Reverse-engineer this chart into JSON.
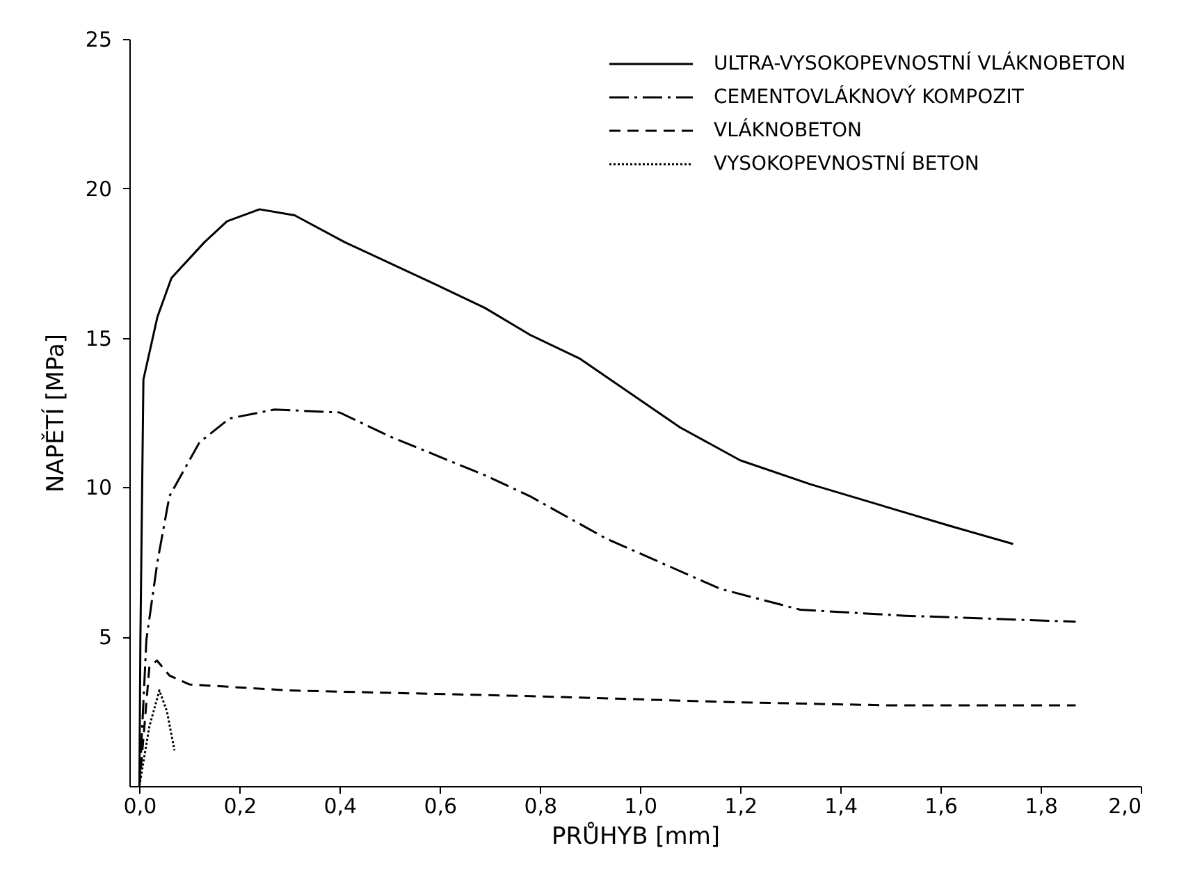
{
  "chart_data": {
    "type": "line",
    "xlabel": "PRŮHYB [mm]",
    "ylabel": "NAPĚTÍ [MPa]",
    "xlim": [
      -0.02,
      2.0
    ],
    "xticks": [
      {
        "value": 0,
        "label": "0,0"
      },
      {
        "value": 0.2,
        "label": "0,2"
      },
      {
        "value": 0.4,
        "label": "0,4"
      },
      {
        "value": 0.6,
        "label": "0,6"
      },
      {
        "value": 0.8,
        "label": "0,8"
      },
      {
        "value": 1.0,
        "label": "1,0"
      },
      {
        "value": 1.2,
        "label": "1,2"
      },
      {
        "value": 1.4,
        "label": "1,4"
      },
      {
        "value": 1.6,
        "label": "1,6"
      },
      {
        "value": 1.8,
        "label": "1,8"
      },
      {
        "value": 2.0,
        "label": "2,0"
      }
    ],
    "ylim": [
      0,
      25
    ],
    "yticks": [
      5,
      10,
      15,
      20,
      25
    ],
    "grid": false,
    "legend": "top right",
    "marker": "none",
    "series": [
      {
        "name": "ULTRA-VYSOKOPEVNOSTNÍ VLÁKNOBETON",
        "color": "#000000",
        "line_style": "solid",
        "x": [
          0,
          0.002,
          0.008,
          0.036,
          0.064,
          0.13,
          0.175,
          0.24,
          0.31,
          0.41,
          0.59,
          0.69,
          0.78,
          0.88,
          1.08,
          1.2,
          1.34,
          1.48,
          1.62,
          1.745
        ],
        "values": [
          0,
          4.9,
          13.6,
          15.7,
          17.0,
          18.2,
          18.9,
          19.3,
          19.1,
          18.2,
          16.8,
          16.0,
          15.1,
          14.3,
          12.0,
          10.9,
          10.1,
          9.4,
          8.7,
          8.1
        ]
      },
      {
        "name": "CEMENTOVLÁKNOVÝ KOMPOZIT",
        "color": "#000000",
        "line_style": "dashdot",
        "x": [
          0,
          0.014,
          0.036,
          0.06,
          0.12,
          0.18,
          0.27,
          0.4,
          0.5,
          0.69,
          0.78,
          0.93,
          1.16,
          1.32,
          1.53,
          1.87
        ],
        "values": [
          0,
          4.9,
          7.5,
          9.7,
          11.5,
          12.3,
          12.6,
          12.5,
          11.7,
          10.4,
          9.7,
          8.3,
          6.6,
          5.9,
          5.7,
          5.5
        ]
      },
      {
        "name": "VLÁKNOBETON",
        "color": "#000000",
        "line_style": "dashed",
        "x": [
          0,
          0.02,
          0.035,
          0.06,
          0.1,
          0.3,
          0.8,
          1.2,
          1.5,
          1.87
        ],
        "values": [
          0,
          4.0,
          4.2,
          3.7,
          3.4,
          3.2,
          3.0,
          2.8,
          2.7,
          2.7
        ]
      },
      {
        "name": "VYSOKOPEVNOSTNÍ BETON",
        "color": "#000000",
        "line_style": "dotted",
        "x": [
          0,
          0.02,
          0.04,
          0.055,
          0.07
        ],
        "values": [
          0,
          2.0,
          3.2,
          2.5,
          1.2
        ]
      }
    ]
  }
}
